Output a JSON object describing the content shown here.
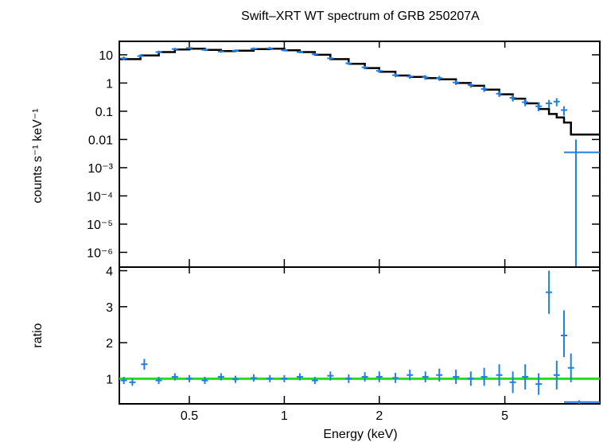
{
  "chart_data": [
    {
      "panel": "spectrum",
      "type": "scatter",
      "title": "Swift–XRT WT spectrum of GRB 250207A",
      "xlabel": "Energy (keV)",
      "ylabel": "counts s⁻¹ keV⁻¹",
      "xscale": "log",
      "yscale": "log",
      "xlim": [
        0.3,
        10
      ],
      "ylim": [
        3e-07,
        30
      ],
      "x_ticks": [
        {
          "value": 0.5,
          "label": "0.5"
        },
        {
          "value": 1,
          "label": "1"
        },
        {
          "value": 2,
          "label": "2"
        },
        {
          "value": 5,
          "label": "5"
        }
      ],
      "y_ticks": [
        {
          "value": 10,
          "label": "10"
        },
        {
          "value": 1,
          "label": "1"
        },
        {
          "value": 0.1,
          "label": "0.1"
        },
        {
          "value": 0.01,
          "label": "0.01"
        },
        {
          "value": 0.001,
          "label": "10⁻³"
        },
        {
          "value": 0.0001,
          "label": "10⁻⁴"
        },
        {
          "value": 1e-05,
          "label": "10⁻⁵"
        },
        {
          "value": 1e-06,
          "label": "10⁻⁶"
        }
      ],
      "series": [
        {
          "role": "data",
          "color": "#1e7fe6",
          "points": [
            {
              "x": 0.31,
              "y": 7.5,
              "ylo": 6.5,
              "yhi": 8.7
            },
            {
              "x": 0.35,
              "y": 9.0,
              "ylo": 8.0,
              "yhi": 10.2
            },
            {
              "x": 0.4,
              "y": 12.5,
              "ylo": 11.2,
              "yhi": 14.0
            },
            {
              "x": 0.45,
              "y": 16.0,
              "ylo": 14.5,
              "yhi": 17.8
            },
            {
              "x": 0.5,
              "y": 17.5,
              "ylo": 16.0,
              "yhi": 19.3
            },
            {
              "x": 0.56,
              "y": 15.0,
              "ylo": 13.6,
              "yhi": 16.6
            },
            {
              "x": 0.63,
              "y": 13.0,
              "ylo": 11.8,
              "yhi": 14.4
            },
            {
              "x": 0.7,
              "y": 14.0,
              "ylo": 12.7,
              "yhi": 15.5
            },
            {
              "x": 0.8,
              "y": 16.5,
              "ylo": 15.0,
              "yhi": 18.2
            },
            {
              "x": 0.9,
              "y": 17.0,
              "ylo": 15.5,
              "yhi": 18.8
            },
            {
              "x": 1.0,
              "y": 14.5,
              "ylo": 13.2,
              "yhi": 16.0
            },
            {
              "x": 1.12,
              "y": 12.5,
              "ylo": 11.3,
              "yhi": 13.8
            },
            {
              "x": 1.25,
              "y": 10.5,
              "ylo": 9.5,
              "yhi": 11.6
            },
            {
              "x": 1.4,
              "y": 7.5,
              "ylo": 6.7,
              "yhi": 8.4
            },
            {
              "x": 1.6,
              "y": 5.0,
              "ylo": 4.4,
              "yhi": 5.7
            },
            {
              "x": 1.8,
              "y": 3.6,
              "ylo": 3.1,
              "yhi": 4.1
            },
            {
              "x": 2.0,
              "y": 2.7,
              "ylo": 2.3,
              "yhi": 3.1
            },
            {
              "x": 2.25,
              "y": 1.9,
              "ylo": 1.6,
              "yhi": 2.2
            },
            {
              "x": 2.5,
              "y": 1.7,
              "ylo": 1.4,
              "yhi": 2.0
            },
            {
              "x": 2.8,
              "y": 1.6,
              "ylo": 1.3,
              "yhi": 1.9
            },
            {
              "x": 3.1,
              "y": 1.5,
              "ylo": 1.2,
              "yhi": 1.8
            },
            {
              "x": 3.5,
              "y": 1.05,
              "ylo": 0.85,
              "yhi": 1.25
            },
            {
              "x": 3.9,
              "y": 0.85,
              "ylo": 0.68,
              "yhi": 1.02
            },
            {
              "x": 4.3,
              "y": 0.62,
              "ylo": 0.48,
              "yhi": 0.76
            },
            {
              "x": 4.8,
              "y": 0.42,
              "ylo": 0.32,
              "yhi": 0.52
            },
            {
              "x": 5.3,
              "y": 0.3,
              "ylo": 0.22,
              "yhi": 0.38
            },
            {
              "x": 5.8,
              "y": 0.21,
              "ylo": 0.15,
              "yhi": 0.27
            },
            {
              "x": 6.4,
              "y": 0.15,
              "ylo": 0.1,
              "yhi": 0.2
            },
            {
              "x": 6.9,
              "y": 0.19,
              "ylo": 0.13,
              "yhi": 0.25
            },
            {
              "x": 7.3,
              "y": 0.22,
              "ylo": 0.15,
              "yhi": 0.29
            },
            {
              "x": 7.7,
              "y": 0.11,
              "ylo": 0.07,
              "yhi": 0.15
            },
            {
              "x": 8.4,
              "y": 0.0035,
              "ylo": 3e-07,
              "yhi": 0.01,
              "xlo": 7.7,
              "xhi": 10
            }
          ]
        },
        {
          "role": "model",
          "color": "#000000",
          "points": [
            {
              "x": 0.3,
              "y": 7.0
            },
            {
              "x": 0.35,
              "y": 9.5
            },
            {
              "x": 0.4,
              "y": 12.5
            },
            {
              "x": 0.45,
              "y": 15.5
            },
            {
              "x": 0.5,
              "y": 16.5
            },
            {
              "x": 0.56,
              "y": 15.0
            },
            {
              "x": 0.63,
              "y": 13.5
            },
            {
              "x": 0.7,
              "y": 14.0
            },
            {
              "x": 0.8,
              "y": 16.0
            },
            {
              "x": 0.9,
              "y": 16.5
            },
            {
              "x": 1.0,
              "y": 14.5
            },
            {
              "x": 1.12,
              "y": 12.5
            },
            {
              "x": 1.25,
              "y": 10.0
            },
            {
              "x": 1.4,
              "y": 7.0
            },
            {
              "x": 1.6,
              "y": 4.8
            },
            {
              "x": 1.8,
              "y": 3.4
            },
            {
              "x": 2.0,
              "y": 2.5
            },
            {
              "x": 2.25,
              "y": 1.85
            },
            {
              "x": 2.5,
              "y": 1.65
            },
            {
              "x": 2.8,
              "y": 1.5
            },
            {
              "x": 3.1,
              "y": 1.35
            },
            {
              "x": 3.5,
              "y": 1.0
            },
            {
              "x": 3.9,
              "y": 0.8
            },
            {
              "x": 4.3,
              "y": 0.58
            },
            {
              "x": 4.8,
              "y": 0.4
            },
            {
              "x": 5.3,
              "y": 0.28
            },
            {
              "x": 5.8,
              "y": 0.19
            },
            {
              "x": 6.4,
              "y": 0.12
            },
            {
              "x": 6.9,
              "y": 0.08
            },
            {
              "x": 7.3,
              "y": 0.06
            },
            {
              "x": 7.7,
              "y": 0.04
            },
            {
              "x": 8.1,
              "y": 0.015
            },
            {
              "x": 10.0,
              "y": 0.015
            }
          ]
        }
      ]
    },
    {
      "panel": "ratio",
      "type": "scatter",
      "xlabel": "Energy (keV)",
      "ylabel": "ratio",
      "xscale": "log",
      "xlim": [
        0.3,
        10
      ],
      "ylim": [
        0.3,
        4.1
      ],
      "x_ticks": [
        {
          "value": 0.5,
          "label": "0.5"
        },
        {
          "value": 1,
          "label": "1"
        },
        {
          "value": 2,
          "label": "2"
        },
        {
          "value": 5,
          "label": "5"
        }
      ],
      "y_ticks": [
        {
          "value": 1,
          "label": "1"
        },
        {
          "value": 2,
          "label": "2"
        },
        {
          "value": 3,
          "label": "3"
        },
        {
          "value": 4,
          "label": "4"
        }
      ],
      "reference_line": {
        "y": 1,
        "color": "#22dd22"
      },
      "series": [
        {
          "role": "data",
          "color": "#1e7fe6",
          "points": [
            {
              "x": 0.31,
              "y": 0.95,
              "ylo": 0.85,
              "yhi": 1.05
            },
            {
              "x": 0.33,
              "y": 0.9,
              "ylo": 0.8,
              "yhi": 1.0
            },
            {
              "x": 0.36,
              "y": 1.4,
              "ylo": 1.25,
              "yhi": 1.55
            },
            {
              "x": 0.4,
              "y": 0.95,
              "ylo": 0.85,
              "yhi": 1.05
            },
            {
              "x": 0.45,
              "y": 1.05,
              "ylo": 0.95,
              "yhi": 1.15
            },
            {
              "x": 0.5,
              "y": 1.0,
              "ylo": 0.9,
              "yhi": 1.1
            },
            {
              "x": 0.56,
              "y": 0.95,
              "ylo": 0.85,
              "yhi": 1.05
            },
            {
              "x": 0.63,
              "y": 1.05,
              "ylo": 0.95,
              "yhi": 1.15
            },
            {
              "x": 0.7,
              "y": 0.98,
              "ylo": 0.88,
              "yhi": 1.08
            },
            {
              "x": 0.8,
              "y": 1.02,
              "ylo": 0.92,
              "yhi": 1.12
            },
            {
              "x": 0.9,
              "y": 1.0,
              "ylo": 0.9,
              "yhi": 1.1
            },
            {
              "x": 1.0,
              "y": 1.0,
              "ylo": 0.9,
              "yhi": 1.1
            },
            {
              "x": 1.12,
              "y": 1.05,
              "ylo": 0.95,
              "yhi": 1.15
            },
            {
              "x": 1.25,
              "y": 0.95,
              "ylo": 0.85,
              "yhi": 1.05
            },
            {
              "x": 1.4,
              "y": 1.08,
              "ylo": 0.95,
              "yhi": 1.2
            },
            {
              "x": 1.6,
              "y": 1.0,
              "ylo": 0.88,
              "yhi": 1.12
            },
            {
              "x": 1.8,
              "y": 1.05,
              "ylo": 0.92,
              "yhi": 1.18
            },
            {
              "x": 2.0,
              "y": 1.05,
              "ylo": 0.9,
              "yhi": 1.2
            },
            {
              "x": 2.25,
              "y": 1.02,
              "ylo": 0.88,
              "yhi": 1.16
            },
            {
              "x": 2.5,
              "y": 1.1,
              "ylo": 0.95,
              "yhi": 1.25
            },
            {
              "x": 2.8,
              "y": 1.05,
              "ylo": 0.9,
              "yhi": 1.2
            },
            {
              "x": 3.1,
              "y": 1.1,
              "ylo": 0.92,
              "yhi": 1.28
            },
            {
              "x": 3.5,
              "y": 1.05,
              "ylo": 0.85,
              "yhi": 1.25
            },
            {
              "x": 3.9,
              "y": 1.0,
              "ylo": 0.8,
              "yhi": 1.2
            },
            {
              "x": 4.3,
              "y": 1.05,
              "ylo": 0.8,
              "yhi": 1.3
            },
            {
              "x": 4.8,
              "y": 1.1,
              "ylo": 0.8,
              "yhi": 1.4
            },
            {
              "x": 5.3,
              "y": 0.9,
              "ylo": 0.6,
              "yhi": 1.2
            },
            {
              "x": 5.8,
              "y": 1.05,
              "ylo": 0.7,
              "yhi": 1.4
            },
            {
              "x": 6.4,
              "y": 0.85,
              "ylo": 0.55,
              "yhi": 1.15
            },
            {
              "x": 6.9,
              "y": 3.4,
              "ylo": 2.8,
              "yhi": 4.0
            },
            {
              "x": 7.3,
              "y": 1.1,
              "ylo": 0.7,
              "yhi": 1.5
            },
            {
              "x": 7.7,
              "y": 2.2,
              "ylo": 1.6,
              "yhi": 2.9
            },
            {
              "x": 8.1,
              "y": 1.3,
              "ylo": 0.9,
              "yhi": 1.7
            },
            {
              "x": 8.6,
              "y": 0.35,
              "ylo": 0.3,
              "yhi": 0.4,
              "xlo": 7.7,
              "xhi": 10
            }
          ]
        }
      ]
    }
  ]
}
